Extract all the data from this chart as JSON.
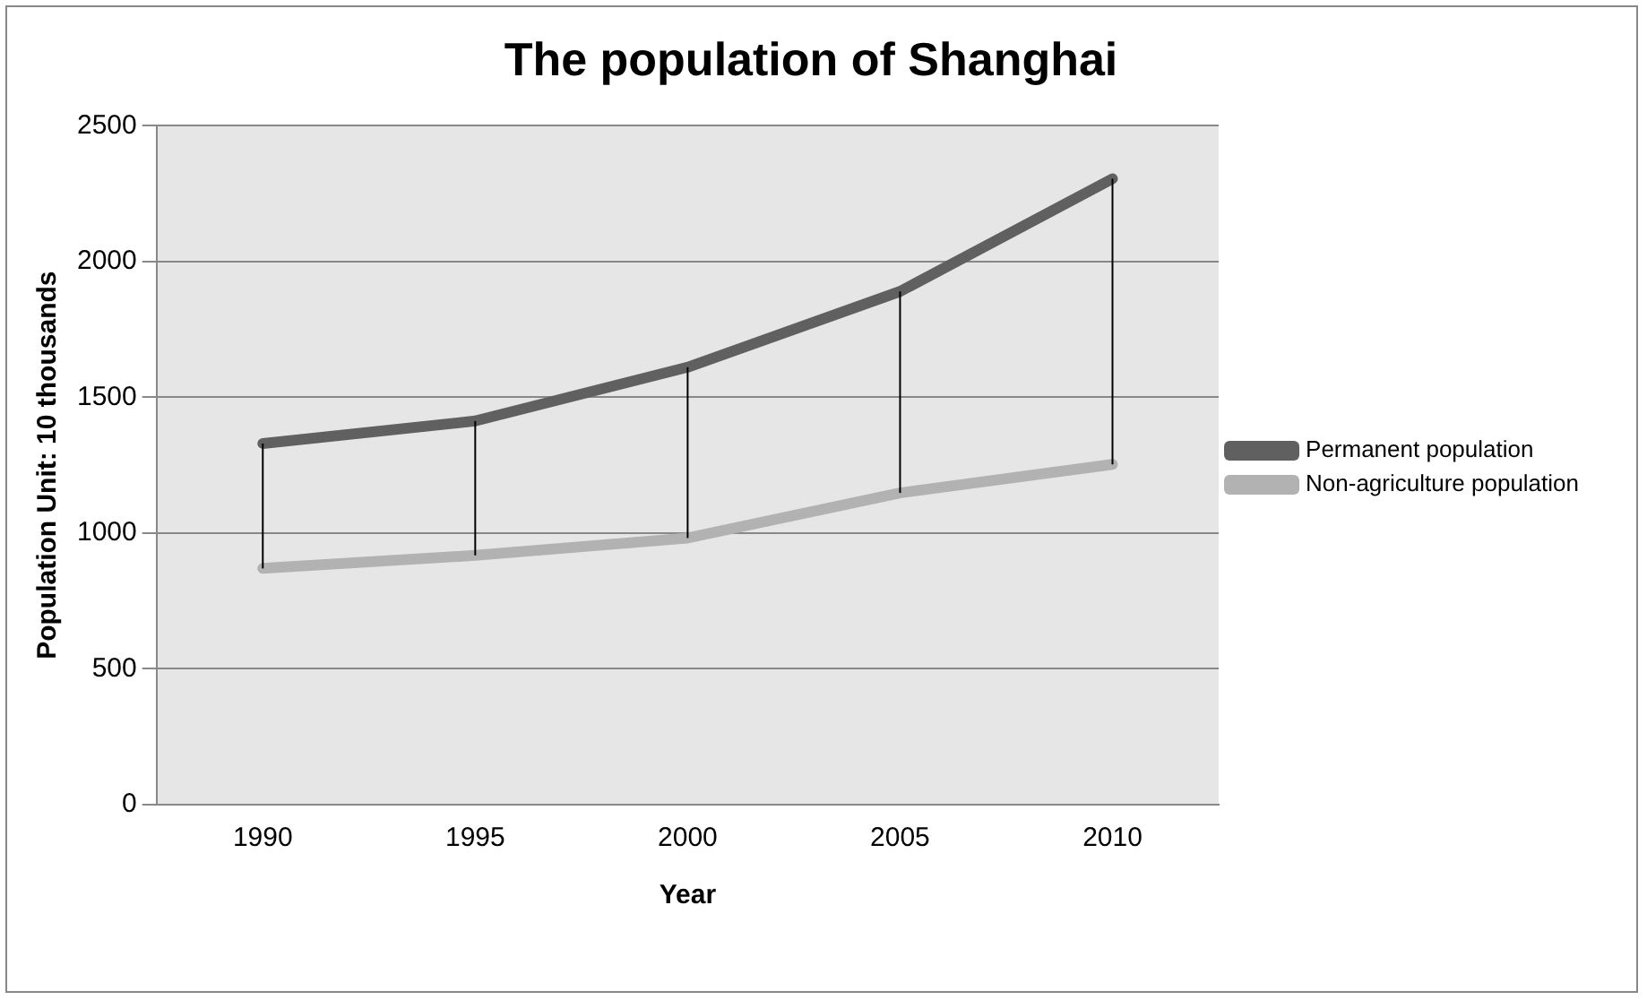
{
  "chart_data": {
    "type": "line",
    "title": "The population of Shanghai",
    "xlabel": "Year",
    "ylabel": "Population Unit: 10 thousands",
    "categories": [
      "1990",
      "1995",
      "2000",
      "2005",
      "2010"
    ],
    "series": [
      {
        "name": "Permanent population",
        "color": "#606060",
        "values": [
          1330,
          1413,
          1611,
          1890,
          2305
        ],
        "errors": [
          [
            870,
            1330
          ],
          [
            918,
            1413
          ],
          [
            982,
            1611
          ],
          [
            1148,
            1890
          ],
          [
            1253,
            2305
          ]
        ]
      },
      {
        "name": "Non-agriculture population",
        "color": "#b2b2b2",
        "values": [
          870,
          918,
          982,
          1148,
          1253
        ]
      }
    ],
    "ylim": [
      0,
      2500
    ],
    "yticks": [
      0,
      500,
      1000,
      1500,
      2000,
      2500
    ],
    "grid": "y",
    "legend": "right",
    "marker": "none",
    "line_style": "solid"
  }
}
